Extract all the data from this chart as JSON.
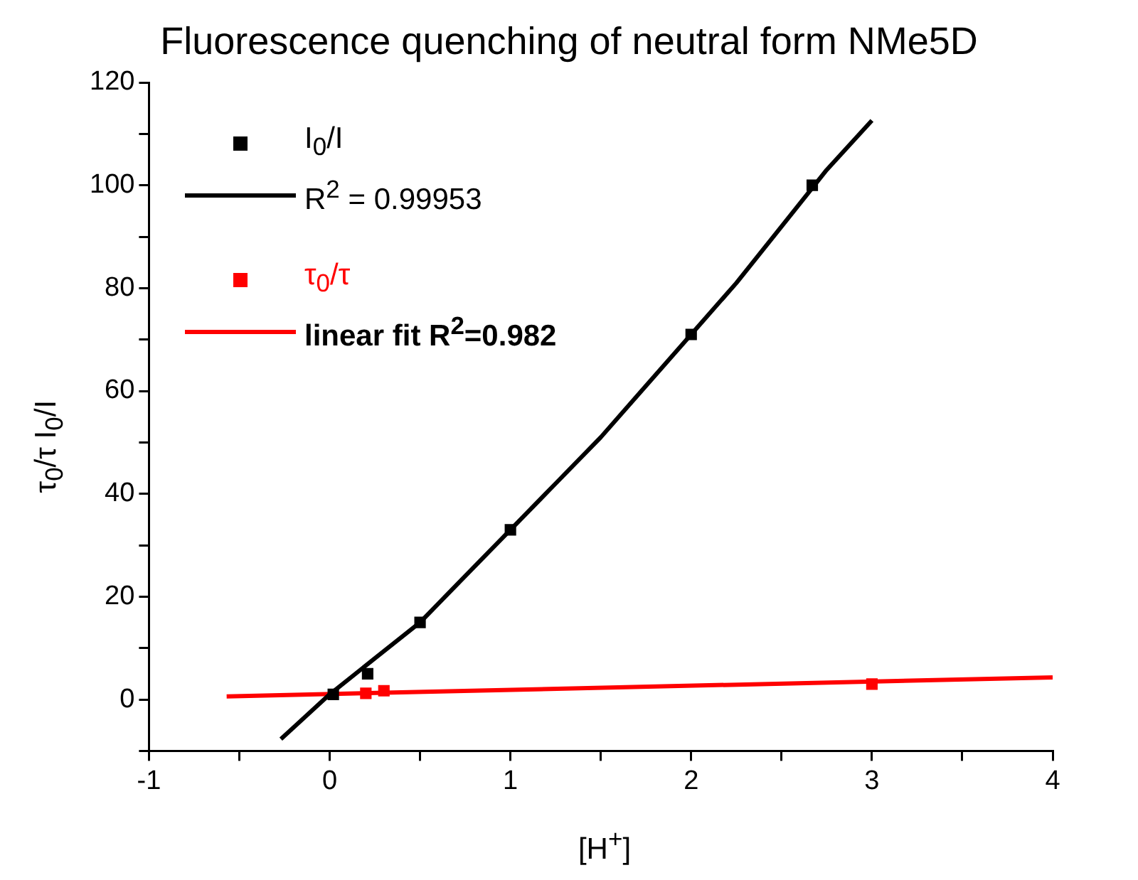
{
  "chart_data": {
    "type": "scatter",
    "title": "Fluorescence quenching of neutral form NMe5D",
    "xlabel": "[H$^{+}$]",
    "ylabel": "τ$_{0}$/τ   I$_{0}$/I",
    "xlim": [
      -1,
      4
    ],
    "xticks": [
      -1,
      {
        "value": -0.5,
        "label": null
      },
      0,
      {
        "value": 0.5,
        "label": null
      },
      1,
      {
        "value": 1.5,
        "label": null
      },
      2,
      {
        "value": 2.5,
        "label": null
      },
      3,
      {
        "value": 3.5,
        "label": null
      },
      4
    ],
    "ylim": [
      -10,
      120
    ],
    "yticks": [
      {
        "value": -10,
        "label": null
      },
      0,
      {
        "value": 10,
        "label": null
      },
      20,
      {
        "value": 30,
        "label": null
      },
      40,
      {
        "value": 50,
        "label": null
      },
      60,
      {
        "value": 70,
        "label": null
      },
      80,
      {
        "value": 90,
        "label": null
      },
      100,
      {
        "value": 110,
        "label": null
      },
      120
    ],
    "grid": false,
    "legend": "top left",
    "marker": "square",
    "series": [
      {
        "name": "I$_{0}$/I",
        "type": "scatter",
        "color": "#000000",
        "x": [
          0.02,
          0.21,
          0.5,
          1,
          2,
          2.67
        ],
        "values": [
          1,
          5,
          15,
          33,
          71,
          100
        ]
      },
      {
        "name": "R$^{2}$ = 0.99953",
        "type": "line",
        "marker": "none",
        "color": "#000000",
        "x": [
          -0.27,
          0,
          0.25,
          0.5,
          0.75,
          1,
          1.25,
          1.5,
          1.75,
          2,
          2.25,
          2.5,
          2.75,
          3
        ],
        "values": [
          -7.7,
          1,
          8,
          15,
          24,
          33,
          42,
          51,
          61,
          71,
          81,
          92,
          103,
          112.6
        ]
      },
      {
        "name": "τ$_{0}$/τ",
        "type": "scatter",
        "color": "#ff0000",
        "x": [
          0.2,
          0.3,
          3
        ],
        "values": [
          1.2,
          1.7,
          3
        ]
      },
      {
        "name": "linear fit R$^{2}$=0.982",
        "type": "line",
        "marker": "none",
        "color": "#ff0000",
        "x": [
          -0.57,
          4
        ],
        "values": [
          0.6,
          4.3
        ]
      }
    ]
  }
}
